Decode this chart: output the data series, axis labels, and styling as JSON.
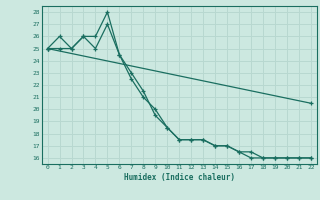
{
  "xlabel": "Humidex (Indice chaleur)",
  "background_color": "#cce8e0",
  "line_color": "#1a6e60",
  "grid_color": "#b8d8d0",
  "xlim_min": -0.5,
  "xlim_max": 22.5,
  "ylim_min": 15.5,
  "ylim_max": 28.5,
  "xticks": [
    0,
    1,
    2,
    3,
    4,
    5,
    6,
    7,
    8,
    9,
    10,
    11,
    12,
    13,
    14,
    15,
    16,
    17,
    18,
    19,
    20,
    21,
    22
  ],
  "yticks": [
    16,
    17,
    18,
    19,
    20,
    21,
    22,
    23,
    24,
    25,
    26,
    27,
    28
  ],
  "line1_x": [
    0,
    1,
    2,
    3,
    4,
    5,
    6,
    7,
    8,
    9,
    10,
    11,
    12,
    13,
    14,
    15,
    16,
    17,
    18,
    19,
    20,
    21,
    22
  ],
  "line1_y": [
    25,
    26,
    25,
    26,
    26,
    28,
    24.5,
    22.5,
    21,
    20,
    18.5,
    17.5,
    17.5,
    17.5,
    17,
    17,
    16.5,
    16.5,
    16,
    16,
    16,
    16,
    16
  ],
  "line2_x": [
    0,
    1,
    2,
    3,
    4,
    5,
    6,
    7,
    8,
    9,
    10,
    11,
    12,
    13,
    14,
    15,
    16,
    17,
    18,
    19,
    20,
    21,
    22
  ],
  "line2_y": [
    25,
    25,
    25,
    26,
    25,
    27,
    24.5,
    23,
    21.5,
    19.5,
    18.5,
    17.5,
    17.5,
    17.5,
    17,
    17,
    16.5,
    16,
    16,
    16,
    16,
    16,
    16
  ],
  "line3_x": [
    0,
    22
  ],
  "line3_y": [
    25,
    20.5
  ]
}
